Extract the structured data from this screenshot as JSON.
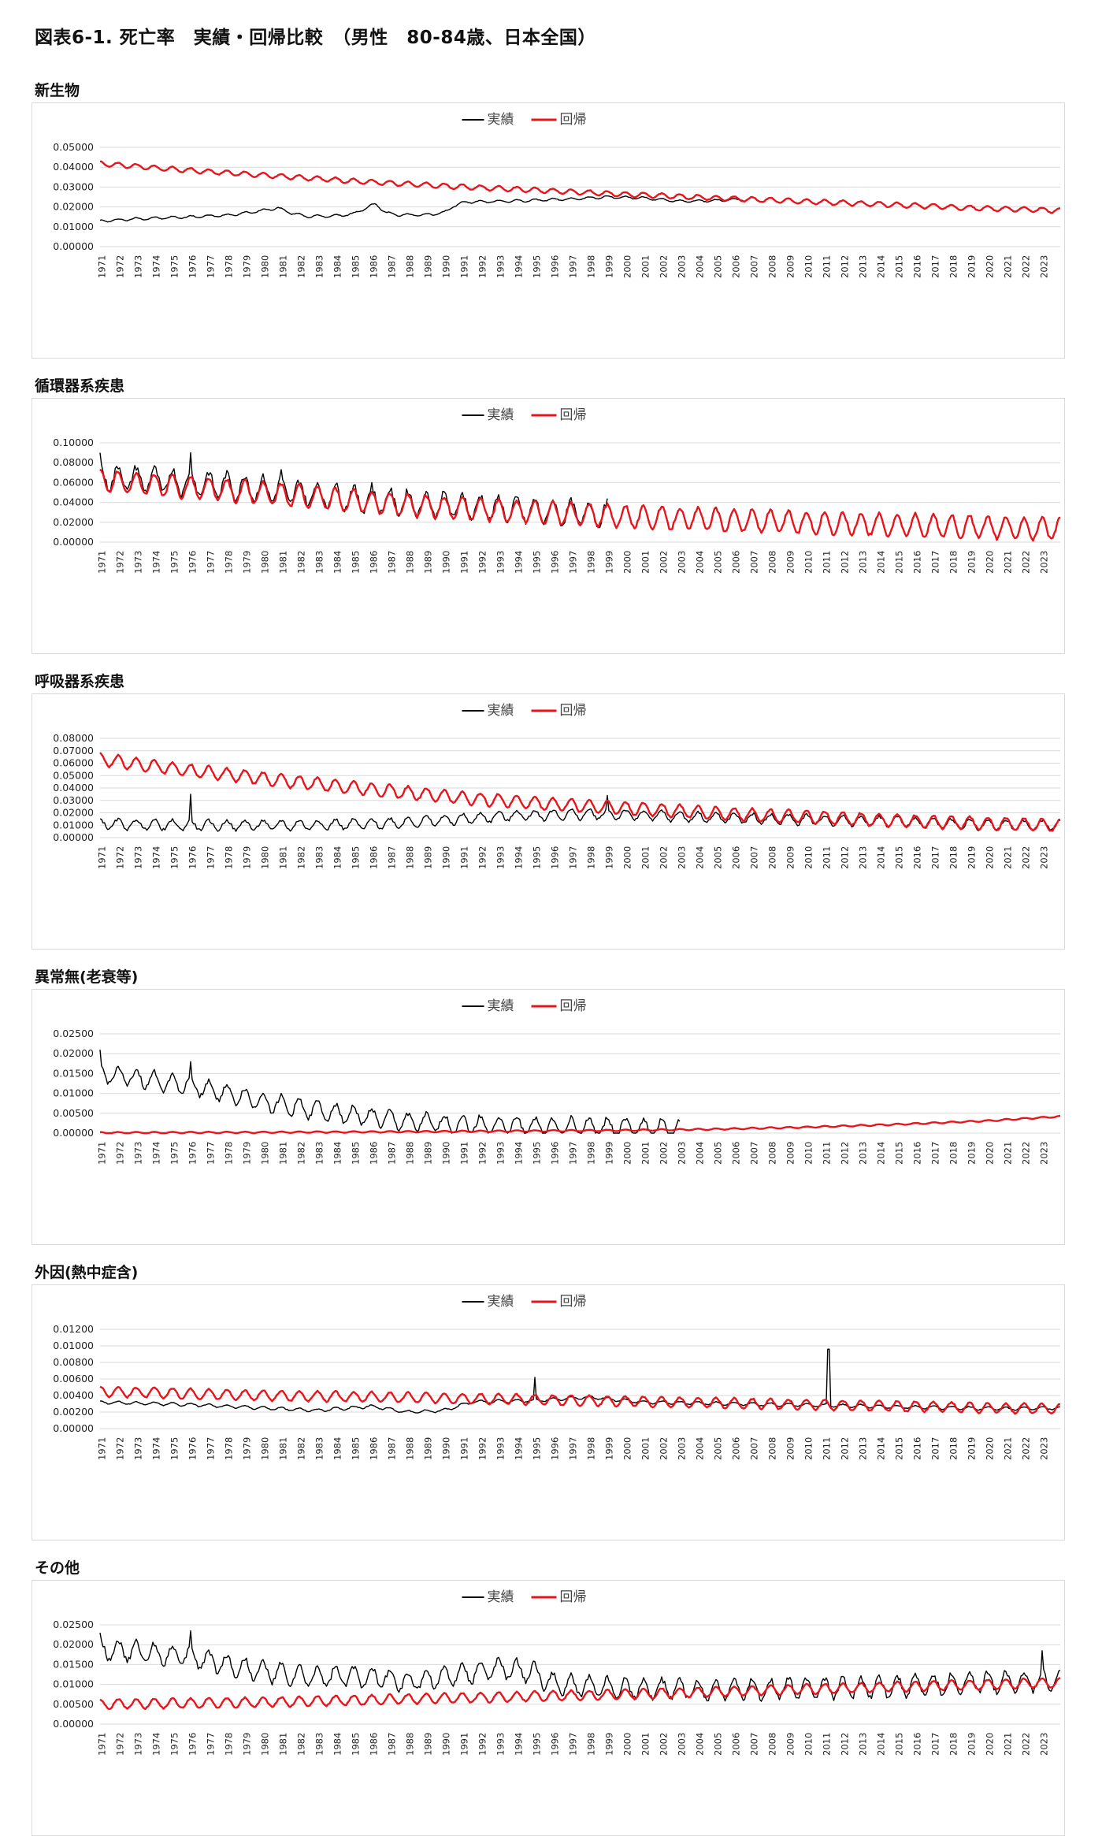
{
  "page_title": "図表6-1. 死亡率　実績・回帰比較　（男性　80-84歳、日本全国）",
  "colors": {
    "actual": "#000000",
    "regression": "#e8141c",
    "grid": "#d9d9d9",
    "text": "#222222"
  },
  "legend": {
    "actual": "実績",
    "regression": "回帰"
  },
  "x_tick_labels": [
    "1971",
    "1972",
    "1973",
    "1974",
    "1975",
    "1976",
    "1977",
    "1978",
    "1979",
    "1980",
    "1981",
    "1982",
    "1983",
    "1984",
    "1985",
    "1986",
    "1987",
    "1988",
    "1989",
    "1990",
    "1991",
    "1992",
    "1993",
    "1994",
    "1995",
    "1996",
    "1997",
    "1998",
    "1999",
    "2000",
    "2001",
    "2002",
    "2003",
    "2004",
    "2005",
    "2006",
    "2007",
    "2008",
    "2009",
    "2010",
    "2011",
    "2012",
    "2013",
    "2014",
    "2015",
    "2016",
    "2017",
    "2018",
    "2019",
    "2020",
    "2021",
    "2022",
    "2023"
  ],
  "panels": [
    {
      "title": "新生物",
      "y_ticks": [
        "0.00000",
        "0.01000",
        "0.02000",
        "0.03000",
        "0.04000",
        "0.05000"
      ],
      "chart_data": {
        "type": "line",
        "x_range": [
          1971,
          2024
        ],
        "ylim": [
          0,
          0.05
        ],
        "grid": true,
        "legend": "top-center",
        "series": [
          {
            "name": "実績",
            "seasonal_amp": 0.0006,
            "points": [
              [
                1971,
                0.0128
              ],
              [
                1973,
                0.014
              ],
              [
                1976,
                0.015
              ],
              [
                1978,
                0.0158
              ],
              [
                1979.5,
                0.0175
              ],
              [
                1980.8,
                0.0195
              ],
              [
                1981.6,
                0.0168
              ],
              [
                1982.5,
                0.0152
              ],
              [
                1984,
                0.0155
              ],
              [
                1985,
                0.0165
              ],
              [
                1985.8,
                0.02
              ],
              [
                1986.2,
                0.0215
              ],
              [
                1986.8,
                0.017
              ],
              [
                1987.5,
                0.016
              ],
              [
                1989,
                0.016
              ],
              [
                1990,
                0.017
              ],
              [
                1990.5,
                0.0205
              ],
              [
                1991.2,
                0.0225
              ],
              [
                1994,
                0.023
              ],
              [
                1997,
                0.024
              ],
              [
                1999,
                0.025
              ],
              [
                2001,
                0.0245
              ],
              [
                2003,
                0.0228
              ],
              [
                2005,
                0.0232
              ],
              [
                2006.5,
                0.0238
              ]
            ]
          },
          {
            "name": "回帰",
            "seasonal_amp": 0.0012,
            "points": [
              [
                1971,
                0.0418
              ],
              [
                1975,
                0.039
              ],
              [
                1980,
                0.036
              ],
              [
                1985,
                0.033
              ],
              [
                1990,
                0.0305
              ],
              [
                1995,
                0.0285
              ],
              [
                2000,
                0.0263
              ],
              [
                2005,
                0.0245
              ],
              [
                2010,
                0.0227
              ],
              [
                2015,
                0.021
              ],
              [
                2020,
                0.0192
              ],
              [
                2024,
                0.0182
              ]
            ]
          }
        ]
      }
    },
    {
      "title": "循環器系疾患",
      "y_ticks": [
        "0.00000",
        "0.02000",
        "0.04000",
        "0.06000",
        "0.08000",
        "0.10000"
      ],
      "chart_data": {
        "type": "line",
        "x_range": [
          1971,
          2024
        ],
        "ylim": [
          0,
          0.1
        ],
        "grid": true,
        "legend": "top-center",
        "series": [
          {
            "name": "実績",
            "seasonal_amp": 0.012,
            "points": [
              [
                1971,
                0.066
              ],
              [
                1976,
                0.06
              ],
              [
                1981,
                0.052
              ],
              [
                1986,
                0.042
              ],
              [
                1991,
                0.036
              ],
              [
                1996,
                0.03
              ],
              [
                1999,
                0.028
              ]
            ],
            "peaks": [
              [
                1971,
                0.09
              ],
              [
                1976,
                0.09
              ],
              [
                1981,
                0.073
              ],
              [
                1986,
                0.06
              ],
              [
                1991,
                0.05
              ],
              [
                1999,
                0.044
              ]
            ]
          },
          {
            "name": "回帰",
            "seasonal_amp": 0.011,
            "points": [
              [
                1971,
                0.062
              ],
              [
                1976,
                0.055
              ],
              [
                1981,
                0.048
              ],
              [
                1986,
                0.04
              ],
              [
                1991,
                0.034
              ],
              [
                1996,
                0.029
              ],
              [
                2001,
                0.025
              ],
              [
                2006,
                0.022
              ],
              [
                2011,
                0.019
              ],
              [
                2016,
                0.017
              ],
              [
                2021,
                0.0145
              ],
              [
                2024,
                0.013
              ]
            ]
          }
        ]
      }
    },
    {
      "title": "呼吸器系疾患",
      "y_ticks": [
        "0.00000",
        "0.01000",
        "0.02000",
        "0.03000",
        "0.04000",
        "0.05000",
        "0.06000",
        "0.07000",
        "0.08000"
      ],
      "chart_data": {
        "type": "line",
        "x_range": [
          1971,
          2024
        ],
        "ylim": [
          0,
          0.08
        ],
        "grid": true,
        "legend": "top-center",
        "series": [
          {
            "name": "実績",
            "seasonal_amp": 0.004,
            "points": [
              [
                1971,
                0.011
              ],
              [
                1976,
                0.01
              ],
              [
                1981,
                0.01
              ],
              [
                1986,
                0.011
              ],
              [
                1990,
                0.014
              ],
              [
                1994,
                0.018
              ],
              [
                1999,
                0.019
              ],
              [
                2003,
                0.017
              ],
              [
                2008,
                0.015
              ],
              [
                2015,
                0.013
              ],
              [
                2020,
                0.01
              ],
              [
                2024,
                0.01
              ]
            ],
            "peaks": [
              [
                1976,
                0.035
              ],
              [
                1999,
                0.034
              ]
            ]
          },
          {
            "name": "回帰",
            "seasonal_amp": 0.005,
            "points": [
              [
                1971,
                0.063
              ],
              [
                1976,
                0.054
              ],
              [
                1981,
                0.046
              ],
              [
                1986,
                0.039
              ],
              [
                1991,
                0.032
              ],
              [
                1996,
                0.027
              ],
              [
                2001,
                0.023
              ],
              [
                2006,
                0.019
              ],
              [
                2011,
                0.016
              ],
              [
                2016,
                0.013
              ],
              [
                2021,
                0.011
              ],
              [
                2024,
                0.01
              ]
            ]
          }
        ]
      }
    },
    {
      "title": "異常無(老衰等)",
      "y_ticks": [
        "0.00000",
        "0.00500",
        "0.01000",
        "0.01500",
        "0.02000",
        "0.02500"
      ],
      "chart_data": {
        "type": "line",
        "x_range": [
          1971,
          2024
        ],
        "ylim": [
          0,
          0.025
        ],
        "grid": true,
        "legend": "top-center",
        "series": [
          {
            "name": "実績",
            "seasonal_amp": 0.0022,
            "points": [
              [
                1971,
                0.015
              ],
              [
                1976,
                0.012
              ],
              [
                1981,
                0.007
              ],
              [
                1986,
                0.004
              ],
              [
                1988,
                0.0028
              ],
              [
                1991,
                0.0022
              ],
              [
                1996,
                0.0017
              ],
              [
                2001,
                0.0013
              ],
              [
                2003,
                0.0011
              ]
            ],
            "peaks": [
              [
                1971,
                0.021
              ],
              [
                1976,
                0.018
              ],
              [
                1981,
                0.01
              ]
            ]
          },
          {
            "name": "回帰",
            "seasonal_amp": 0.00018,
            "points": [
              [
                1971,
                0.0001
              ],
              [
                1980,
                0.0002
              ],
              [
                1990,
                0.0004
              ],
              [
                2000,
                0.0007
              ],
              [
                2005,
                0.001
              ],
              [
                2010,
                0.0015
              ],
              [
                2015,
                0.0022
              ],
              [
                2020,
                0.0031
              ],
              [
                2024,
                0.0042
              ]
            ]
          }
        ]
      }
    },
    {
      "title": "外因(熱中症含)",
      "y_ticks": [
        "0.00000",
        "0.00200",
        "0.00400",
        "0.00600",
        "0.00800",
        "0.01000",
        "0.01200"
      ],
      "chart_data": {
        "type": "line",
        "x_range": [
          1971,
          2024
        ],
        "ylim": [
          0,
          0.012
        ],
        "grid": true,
        "legend": "top-center",
        "series": [
          {
            "name": "実績",
            "seasonal_amp": 0.00018,
            "points": [
              [
                1971,
                0.0032
              ],
              [
                1976,
                0.0029
              ],
              [
                1980,
                0.0025
              ],
              [
                1983,
                0.0022
              ],
              [
                1986,
                0.0027
              ],
              [
                1988,
                0.002
              ],
              [
                1990,
                0.0022
              ],
              [
                1991.5,
                0.0032
              ],
              [
                1995,
                0.0034
              ],
              [
                1998,
                0.0038
              ],
              [
                2001,
                0.0032
              ],
              [
                2006,
                0.003
              ],
              [
                2011,
                0.0028
              ],
              [
                2016,
                0.0026
              ],
              [
                2021,
                0.0024
              ],
              [
                2024,
                0.0025
              ]
            ],
            "peaks": [
              [
                1995,
                0.0062
              ],
              [
                2011.2,
                0.0096
              ]
            ]
          },
          {
            "name": "回帰",
            "seasonal_amp": 0.0006,
            "points": [
              [
                1971,
                0.0045
              ],
              [
                1980,
                0.004
              ],
              [
                1990,
                0.0037
              ],
              [
                2000,
                0.0033
              ],
              [
                2010,
                0.0029
              ],
              [
                2020,
                0.0025
              ],
              [
                2024,
                0.0024
              ]
            ]
          }
        ]
      }
    },
    {
      "title": "その他",
      "y_ticks": [
        "0.00000",
        "0.00500",
        "0.01000",
        "0.01500",
        "0.02000",
        "0.02500"
      ],
      "chart_data": {
        "type": "line",
        "x_range": [
          1971,
          2024
        ],
        "ylim": [
          0,
          0.025
        ],
        "grid": true,
        "legend": "top-center",
        "series": [
          {
            "name": "実績",
            "seasonal_amp": 0.0025,
            "points": [
              [
                1971,
                0.019
              ],
              [
                1976,
                0.017
              ],
              [
                1979,
                0.014
              ],
              [
                1982,
                0.012
              ],
              [
                1986,
                0.012
              ],
              [
                1988,
                0.0105
              ],
              [
                1990,
                0.012
              ],
              [
                1993,
                0.014
              ],
              [
                1995,
                0.013
              ],
              [
                1996,
                0.01
              ],
              [
                2000,
                0.009
              ],
              [
                2005,
                0.0085
              ],
              [
                2010,
                0.009
              ],
              [
                2015,
                0.0095
              ],
              [
                2020,
                0.0105
              ],
              [
                2024,
                0.011
              ]
            ],
            "peaks": [
              [
                1971,
                0.023
              ],
              [
                1976,
                0.0235
              ],
              [
                2023,
                0.0185
              ]
            ]
          },
          {
            "name": "回帰",
            "seasonal_amp": 0.0012,
            "points": [
              [
                1971,
                0.005
              ],
              [
                1980,
                0.0055
              ],
              [
                1990,
                0.0065
              ],
              [
                2000,
                0.0075
              ],
              [
                2010,
                0.0088
              ],
              [
                2020,
                0.01
              ],
              [
                2024,
                0.0105
              ]
            ]
          }
        ]
      }
    }
  ]
}
